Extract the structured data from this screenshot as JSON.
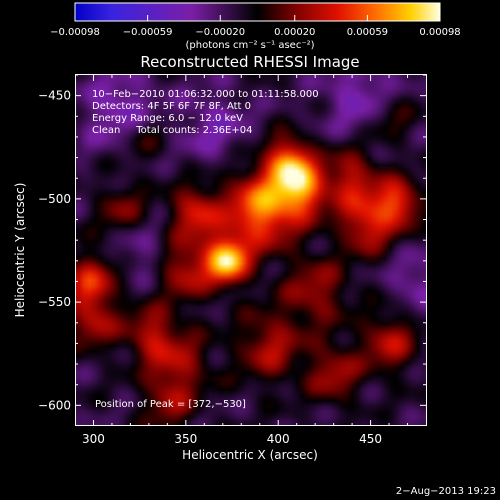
{
  "chart_data": {
    "type": "heatmap",
    "title": "Reconstructed RHESSI Image",
    "xlabel": "Heliocentric X (arcsec)",
    "ylabel": "Heliocentric Y (arcsec)",
    "xlim": [
      290,
      480
    ],
    "ylim": [
      -610,
      -440
    ],
    "x_ticks": [
      300,
      350,
      400,
      450
    ],
    "y_ticks": [
      -450,
      -500,
      -550,
      -600
    ],
    "x_tick_labels": [
      "300",
      "350",
      "400",
      "450"
    ],
    "y_tick_labels": [
      "−450",
      "−500",
      "−550",
      "−600"
    ],
    "colorbar": {
      "range": [
        -0.00098,
        0.00098
      ],
      "ticks": [
        -0.00098,
        -0.00059,
        -0.0002,
        0.0002,
        0.00059,
        0.00098
      ],
      "tick_labels": [
        "−0.00098",
        "−0.00059",
        "−0.00020",
        "0.00020",
        "0.00059",
        "0.00098"
      ],
      "unit": "(photons cm⁻² s⁻¹ asec⁻²)"
    },
    "annotations": [
      "10−Feb−2010 01:06:32.000 to 01:11:58.000",
      "Detectors: 4F 5F 6F 7F 8F, Att 0",
      "Energy Range: 6.0 − 12.0 keV",
      "Clean     Total counts: 2.36E+04"
    ],
    "peak_label": "Position of Peak = [372,−530]",
    "peak": [
      372,
      -530
    ],
    "sources": [
      {
        "x": 372,
        "y": -530,
        "amp": 1.0,
        "sigma": 8
      },
      {
        "x": 390,
        "y": -505,
        "amp": 0.8,
        "sigma": 13
      },
      {
        "x": 412,
        "y": -495,
        "amp": 0.78,
        "sigma": 10
      },
      {
        "x": 405,
        "y": -482,
        "amp": 0.65,
        "sigma": 8
      },
      {
        "x": 355,
        "y": -507,
        "amp": 0.55,
        "sigma": 9
      },
      {
        "x": 465,
        "y": -502,
        "amp": 0.62,
        "sigma": 8
      },
      {
        "x": 448,
        "y": -512,
        "amp": 0.55,
        "sigma": 10
      },
      {
        "x": 440,
        "y": -490,
        "amp": 0.45,
        "sigma": 10
      },
      {
        "x": 350,
        "y": -535,
        "amp": 0.45,
        "sigma": 10
      },
      {
        "x": 298,
        "y": -540,
        "amp": 0.55,
        "sigma": 9
      },
      {
        "x": 300,
        "y": -560,
        "amp": 0.42,
        "sigma": 9
      },
      {
        "x": 330,
        "y": -565,
        "amp": 0.4,
        "sigma": 9
      },
      {
        "x": 345,
        "y": -580,
        "amp": 0.4,
        "sigma": 12
      },
      {
        "x": 395,
        "y": -572,
        "amp": 0.42,
        "sigma": 12
      },
      {
        "x": 430,
        "y": -585,
        "amp": 0.4,
        "sigma": 10
      },
      {
        "x": 460,
        "y": -570,
        "amp": 0.45,
        "sigma": 10
      },
      {
        "x": 420,
        "y": -545,
        "amp": 0.38,
        "sigma": 12
      },
      {
        "x": 315,
        "y": -505,
        "amp": 0.3,
        "sigma": 9
      },
      {
        "x": 325,
        "y": -470,
        "amp": 0.25,
        "sigma": 10
      },
      {
        "x": 460,
        "y": -460,
        "amp": 0.25,
        "sigma": 9
      },
      {
        "x": 340,
        "y": -600,
        "amp": 0.3,
        "sigma": 9
      }
    ],
    "background_negatives": [
      {
        "x": 315,
        "y": -458,
        "amp": -0.35,
        "sigma": 14
      },
      {
        "x": 365,
        "y": -465,
        "amp": -0.25,
        "sigma": 13
      },
      {
        "x": 445,
        "y": -450,
        "amp": -0.3,
        "sigma": 14
      },
      {
        "x": 325,
        "y": -525,
        "amp": -0.2,
        "sigma": 9
      },
      {
        "x": 475,
        "y": -540,
        "amp": -0.25,
        "sigma": 10
      }
    ]
  },
  "footer": {
    "timestamp": "2−Aug−2013 19:23"
  }
}
